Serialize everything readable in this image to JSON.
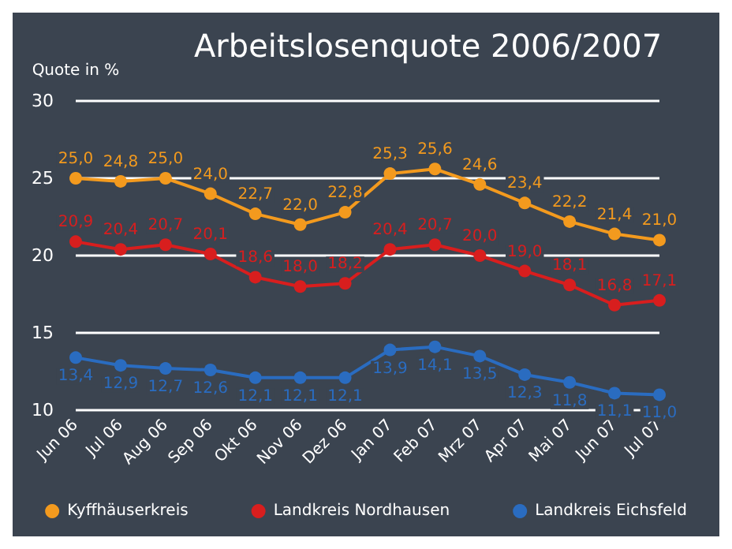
{
  "chart_data": {
    "type": "line",
    "title": "Arbeitslosenquote 2006/2007",
    "ylabel": "Quote in %",
    "categories": [
      "Jun 06",
      "Jul 06",
      "Aug 06",
      "Sep 06",
      "Okt 06",
      "Nov 06",
      "Dez 06",
      "Jan 07",
      "Feb 07",
      "Mrz 07",
      "Apr 07",
      "Mai 07",
      "Jun 07",
      "Jul 07"
    ],
    "series": [
      {
        "name": "Kyffhäuserkreis",
        "color": "#f39a1e",
        "values": [
          25.0,
          24.8,
          25.0,
          24.0,
          22.7,
          22.0,
          22.8,
          25.3,
          25.6,
          24.6,
          23.4,
          22.2,
          21.4,
          21.0
        ],
        "value_labels": [
          "25,0",
          "24,8",
          "25,0",
          "24,0",
          "22,7",
          "22,0",
          "22,8",
          "25,3",
          "25,6",
          "24,6",
          "23,4",
          "22,2",
          "21,4",
          "21,0"
        ]
      },
      {
        "name": "Landkreis Nordhausen",
        "color": "#d81e1e",
        "values": [
          20.9,
          20.4,
          20.7,
          20.1,
          18.6,
          18.0,
          18.2,
          20.4,
          20.7,
          20.0,
          19.0,
          18.1,
          16.8,
          17.1
        ],
        "value_labels": [
          "20,9",
          "20,4",
          "20,7",
          "20,1",
          "18,6",
          "18,0",
          "18,2",
          "20,4",
          "20,7",
          "20,0",
          "19,0",
          "18,1",
          "16,8",
          "17,1"
        ]
      },
      {
        "name": "Landkreis Eichsfeld",
        "color": "#2a6cc0",
        "values": [
          13.4,
          12.9,
          12.7,
          12.6,
          12.1,
          12.1,
          12.1,
          13.9,
          14.1,
          13.5,
          12.3,
          11.8,
          11.1,
          11.0
        ],
        "value_labels": [
          "13,4",
          "12,9",
          "12,7",
          "12,6",
          "12,1",
          "12,1",
          "12,1",
          "13,9",
          "14,1",
          "13,5",
          "12,3",
          "11,8",
          "11,1",
          "11,0"
        ]
      }
    ],
    "ylim": [
      10,
      30
    ],
    "yticks": [
      10,
      15,
      20,
      25,
      30
    ],
    "grid": "y",
    "legend": "bottom",
    "marker": "circle",
    "line_style": "solid"
  }
}
